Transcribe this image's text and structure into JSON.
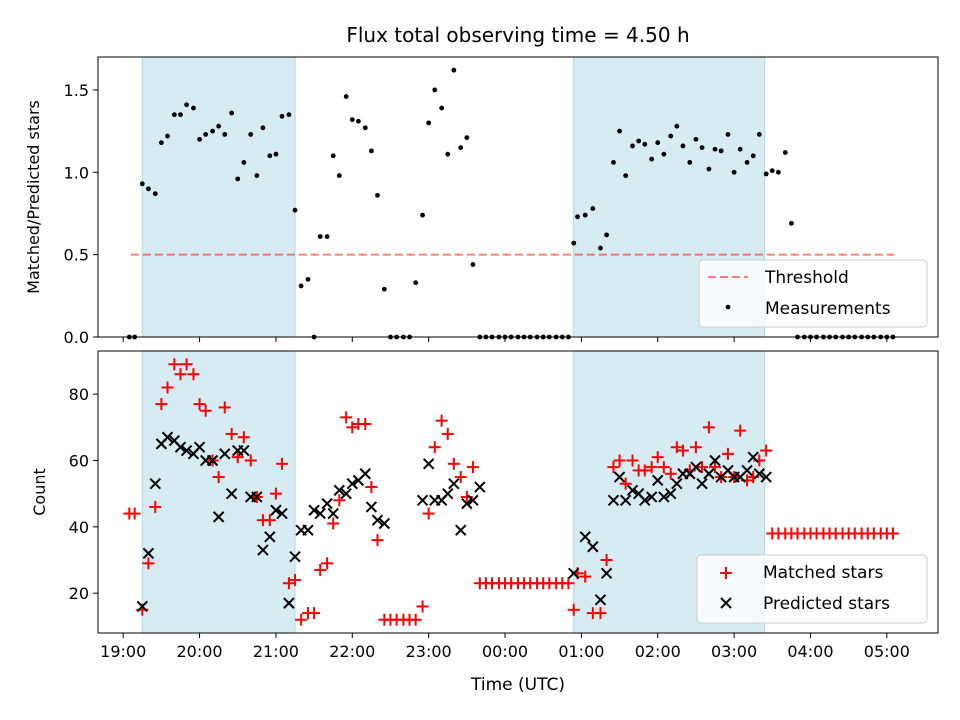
{
  "colors": {
    "shade": "#add8e6",
    "threshold": "#ff0000",
    "measurement": "#000000",
    "matched": "#ff0000",
    "predicted": "#000000"
  },
  "chart_data": [
    {
      "type": "scatter",
      "title": "Flux total observing time = 4.50 h",
      "ylabel": "Matched/Predicted stars",
      "xlabel": "",
      "ylim": [
        0,
        1.7
      ],
      "yticks": [
        0.0,
        0.5,
        1.0,
        1.5
      ],
      "ytick_labels": [
        "0.0",
        "0.5",
        "1.0",
        "1.5"
      ],
      "xlim": [
        18.67,
        29.67
      ],
      "xticks": [
        19,
        20,
        21,
        22,
        23,
        24,
        25,
        26,
        27,
        28,
        29
      ],
      "xtick_labels": [
        "19:00",
        "20:00",
        "21:00",
        "22:00",
        "23:00",
        "00:00",
        "01:00",
        "02:00",
        "03:00",
        "04:00",
        "05:00"
      ],
      "shaded_regions": [
        [
          19.25,
          21.25
        ],
        [
          24.9,
          27.4
        ]
      ],
      "threshold": {
        "name": "Threshold",
        "value": 0.5,
        "x_range": [
          19.1,
          29.1
        ]
      },
      "legend": {
        "position": "lower-right",
        "entries": [
          "Threshold",
          "Measurements"
        ]
      },
      "series": [
        {
          "name": "Measurements",
          "x": [
            19.08,
            19.15,
            19.25,
            19.33,
            19.42,
            19.5,
            19.58,
            19.67,
            19.75,
            19.83,
            19.92,
            20.0,
            20.08,
            20.17,
            20.25,
            20.33,
            20.42,
            20.5,
            20.58,
            20.67,
            20.75,
            20.83,
            20.92,
            21.0,
            21.08,
            21.17,
            21.25,
            21.33,
            21.42,
            21.5,
            21.58,
            21.67,
            21.75,
            21.83,
            21.92,
            22.0,
            22.08,
            22.17,
            22.25,
            22.33,
            22.42,
            22.5,
            22.58,
            22.67,
            22.75,
            22.83,
            22.92,
            23.0,
            23.08,
            23.17,
            23.25,
            23.33,
            23.42,
            23.5,
            23.58,
            23.67,
            23.75,
            23.83,
            23.92,
            24.0,
            24.08,
            24.17,
            24.25,
            24.33,
            24.42,
            24.5,
            24.58,
            24.67,
            24.75,
            24.83,
            24.9,
            24.95,
            25.05,
            25.15,
            25.25,
            25.33,
            25.42,
            25.5,
            25.58,
            25.67,
            25.75,
            25.83,
            25.92,
            26.0,
            26.08,
            26.17,
            26.25,
            26.33,
            26.42,
            26.5,
            26.58,
            26.67,
            26.75,
            26.83,
            26.92,
            27.0,
            27.08,
            27.17,
            27.25,
            27.33,
            27.42,
            27.5,
            27.58,
            27.67,
            27.75,
            27.83,
            27.92,
            28.0,
            28.08,
            28.17,
            28.25,
            28.33,
            28.42,
            28.5,
            28.58,
            28.67,
            28.75,
            28.83,
            28.92,
            29.0,
            29.08
          ],
          "y": [
            0.0,
            0.0,
            0.93,
            0.9,
            0.87,
            1.18,
            1.22,
            1.35,
            1.35,
            1.41,
            1.39,
            1.2,
            1.23,
            1.25,
            1.28,
            1.23,
            1.36,
            0.96,
            1.06,
            1.23,
            0.98,
            1.27,
            1.1,
            1.11,
            1.34,
            1.35,
            0.77,
            0.31,
            0.35,
            0.0,
            0.61,
            0.61,
            1.1,
            0.98,
            1.46,
            1.32,
            1.31,
            1.27,
            1.13,
            0.86,
            0.29,
            0.0,
            0.0,
            0.0,
            0.0,
            0.33,
            0.74,
            1.3,
            1.5,
            1.39,
            1.11,
            1.62,
            1.15,
            1.21,
            0.44,
            0.0,
            0.0,
            0.0,
            0.0,
            0.0,
            0.0,
            0.0,
            0.0,
            0.0,
            0.0,
            0.0,
            0.0,
            0.0,
            0.0,
            0.0,
            0.57,
            0.73,
            0.74,
            0.78,
            0.54,
            0.62,
            1.06,
            1.25,
            0.98,
            1.16,
            1.19,
            1.17,
            1.08,
            1.18,
            1.11,
            1.22,
            1.28,
            1.16,
            1.06,
            1.2,
            1.15,
            1.02,
            1.14,
            1.13,
            1.23,
            1.0,
            1.14,
            1.06,
            1.1,
            1.23,
            0.99,
            1.01,
            1.0,
            1.12,
            0.69,
            0.0,
            0.0,
            0.0,
            0.0,
            0.0,
            0.0,
            0.0,
            0.0,
            0.0,
            0.0,
            0.0,
            0.0,
            0.0,
            0.0,
            0.0,
            0.0
          ]
        }
      ]
    },
    {
      "type": "scatter",
      "title": "",
      "ylabel": "Count",
      "xlabel": "Time (UTC)",
      "ylim": [
        8,
        93
      ],
      "yticks": [
        20,
        40,
        60,
        80
      ],
      "ytick_labels": [
        "20",
        "40",
        "60",
        "80"
      ],
      "xlim": [
        18.67,
        29.67
      ],
      "xticks": [
        19,
        20,
        21,
        22,
        23,
        24,
        25,
        26,
        27,
        28,
        29
      ],
      "xtick_labels": [
        "19:00",
        "20:00",
        "21:00",
        "22:00",
        "23:00",
        "00:00",
        "01:00",
        "02:00",
        "03:00",
        "04:00",
        "05:00"
      ],
      "shaded_regions": [
        [
          19.25,
          21.25
        ],
        [
          24.9,
          27.4
        ]
      ],
      "legend": {
        "position": "lower-right",
        "entries": [
          "Matched stars",
          "Predicted stars"
        ]
      },
      "series": [
        {
          "name": "Matched stars",
          "x": [
            19.08,
            19.15,
            19.25,
            19.33,
            19.42,
            19.5,
            19.58,
            19.67,
            19.75,
            19.83,
            19.92,
            20.0,
            20.08,
            20.17,
            20.25,
            20.33,
            20.42,
            20.5,
            20.58,
            20.67,
            20.75,
            20.83,
            20.92,
            21.0,
            21.08,
            21.17,
            21.25,
            21.33,
            21.42,
            21.5,
            21.58,
            21.67,
            21.75,
            21.83,
            21.92,
            22.0,
            22.08,
            22.17,
            22.25,
            22.33,
            22.42,
            22.5,
            22.58,
            22.67,
            22.75,
            22.83,
            22.92,
            23.0,
            23.08,
            23.17,
            23.25,
            23.33,
            23.42,
            23.5,
            23.58,
            23.67,
            23.75,
            23.83,
            23.92,
            24.0,
            24.08,
            24.17,
            24.25,
            24.33,
            24.42,
            24.5,
            24.58,
            24.67,
            24.75,
            24.83,
            24.9,
            24.95,
            25.05,
            25.15,
            25.25,
            25.33,
            25.42,
            25.5,
            25.58,
            25.67,
            25.75,
            25.83,
            25.92,
            26.0,
            26.08,
            26.17,
            26.25,
            26.33,
            26.42,
            26.5,
            26.58,
            26.67,
            26.75,
            26.83,
            26.92,
            27.0,
            27.08,
            27.17,
            27.25,
            27.33,
            27.42,
            27.5,
            27.58,
            27.67,
            27.75,
            27.83,
            27.92,
            28.0,
            28.08,
            28.17,
            28.25,
            28.33,
            28.42,
            28.5,
            28.58,
            28.67,
            28.75,
            28.83,
            28.92,
            29.0,
            29.08
          ],
          "y": [
            44,
            44,
            15,
            29,
            46,
            77,
            82,
            89,
            86,
            89,
            86,
            77,
            75,
            60,
            55,
            76,
            68,
            61,
            67,
            60,
            49,
            42,
            42,
            50,
            59,
            23,
            24,
            12,
            14,
            14,
            27,
            29,
            41,
            48,
            73,
            70,
            71,
            71,
            52,
            36,
            12,
            12,
            12,
            12,
            12,
            12,
            16,
            44,
            64,
            72,
            68,
            59,
            55,
            49,
            58,
            23,
            23,
            23,
            23,
            23,
            23,
            23,
            23,
            23,
            23,
            23,
            23,
            23,
            23,
            23,
            15,
            26,
            25,
            14,
            14,
            30,
            58,
            60,
            53,
            60,
            57,
            57,
            58,
            61,
            58,
            56,
            64,
            63,
            57,
            64,
            58,
            70,
            58,
            55,
            62,
            55,
            69,
            54,
            55,
            60,
            63,
            38,
            38,
            38,
            38,
            38,
            38,
            38,
            38,
            38,
            38,
            38,
            38,
            38,
            38,
            38,
            38,
            38,
            38,
            38,
            38
          ]
        },
        {
          "name": "Predicted stars",
          "x": [
            19.25,
            19.33,
            19.42,
            19.5,
            19.58,
            19.67,
            19.75,
            19.83,
            19.92,
            20.0,
            20.08,
            20.17,
            20.25,
            20.33,
            20.42,
            20.5,
            20.58,
            20.67,
            20.75,
            20.83,
            20.92,
            21.0,
            21.08,
            21.17,
            21.25,
            21.33,
            21.42,
            21.5,
            21.58,
            21.67,
            21.75,
            21.83,
            21.92,
            22.0,
            22.08,
            22.17,
            22.25,
            22.33,
            22.42,
            22.92,
            23.0,
            23.08,
            23.17,
            23.25,
            23.33,
            23.42,
            23.5,
            23.58,
            23.67,
            24.9,
            25.05,
            25.15,
            25.25,
            25.33,
            25.42,
            25.5,
            25.58,
            25.67,
            25.75,
            25.83,
            25.92,
            26.0,
            26.08,
            26.17,
            26.25,
            26.33,
            26.42,
            26.5,
            26.58,
            26.67,
            26.75,
            26.83,
            26.92,
            27.0,
            27.08,
            27.17,
            27.25,
            27.33,
            27.42
          ],
          "y": [
            16,
            32,
            53,
            65,
            67,
            66,
            64,
            63,
            62,
            64,
            60,
            60,
            43,
            62,
            50,
            63,
            63,
            49,
            49,
            33,
            37,
            45,
            44,
            17,
            31,
            39,
            39,
            45,
            44,
            47,
            44,
            51,
            50,
            53,
            54,
            56,
            46,
            42,
            41,
            48,
            59,
            48,
            48,
            50,
            53,
            39,
            47,
            48,
            52,
            26,
            37,
            34,
            18,
            26,
            48,
            55,
            48,
            51,
            50,
            48,
            49,
            54,
            49,
            50,
            53,
            56,
            56,
            58,
            53,
            56,
            60,
            55,
            57,
            55,
            55,
            57,
            61,
            56,
            55
          ]
        }
      ]
    }
  ]
}
